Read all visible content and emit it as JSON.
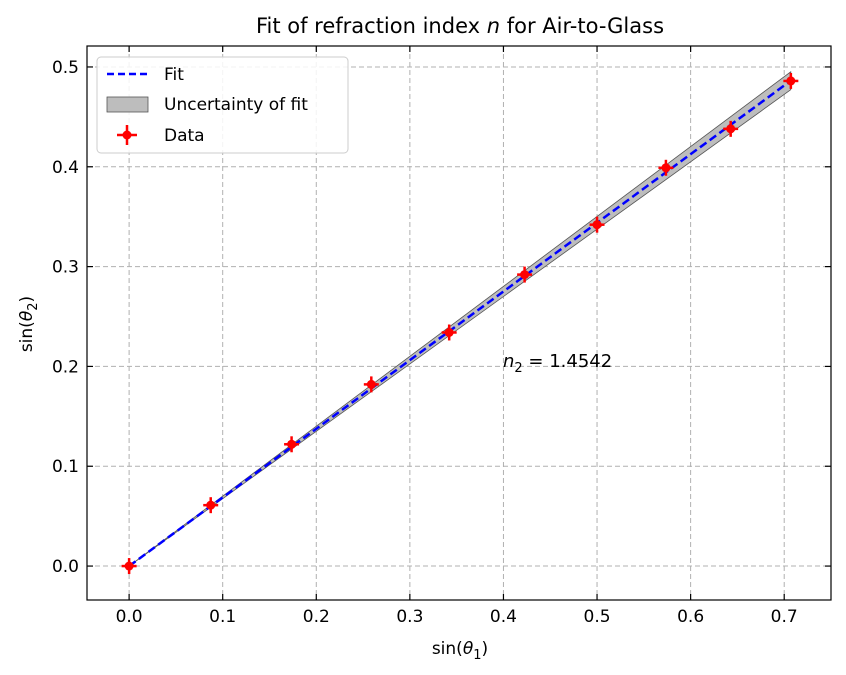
{
  "chart_data": {
    "type": "scatter",
    "title_pre": "Fit of refraction index ",
    "title_var": "n",
    "title_post": " for Air-to-Glass",
    "xlabel_fn": "sin(",
    "xlabel_var": "θ",
    "xlabel_sub": "1",
    "xlabel_close": ")",
    "ylabel_fn": "sin(",
    "ylabel_var": "θ",
    "ylabel_sub": "2",
    "ylabel_close": ")",
    "xlim": [
      -0.045,
      0.75
    ],
    "ylim": [
      -0.034,
      0.521
    ],
    "xticks": [
      0.0,
      0.1,
      0.2,
      0.3,
      0.4,
      0.5,
      0.6,
      0.7
    ],
    "xtick_labels": [
      "0.0",
      "0.1",
      "0.2",
      "0.3",
      "0.4",
      "0.5",
      "0.6",
      "0.7"
    ],
    "yticks": [
      0.0,
      0.1,
      0.2,
      0.3,
      0.4,
      0.5
    ],
    "ytick_labels": [
      "0.0",
      "0.1",
      "0.2",
      "0.3",
      "0.4",
      "0.5"
    ],
    "grid": true,
    "legend_position": "top-left",
    "legend": {
      "fit": "Fit",
      "band": "Uncertainty of fit",
      "data": "Data"
    },
    "annotation": {
      "var": "n",
      "sub": "2",
      "rest": " = 1.4542",
      "x": 0.4,
      "y": 0.2
    },
    "fit": {
      "slope": 0.6877,
      "x": [
        0.0,
        0.707
      ],
      "band_halfwidth_at_end": 0.009
    },
    "series": [
      {
        "name": "Data",
        "x": [
          0.0,
          0.0872,
          0.1736,
          0.2588,
          0.342,
          0.4226,
          0.5,
          0.5736,
          0.6428,
          0.7071
        ],
        "y": [
          0.0,
          0.061,
          0.122,
          0.182,
          0.234,
          0.292,
          0.342,
          0.399,
          0.438,
          0.486
        ],
        "xerr": 0.008,
        "yerr": 0.008
      }
    ],
    "colors": {
      "data": "#ff0000",
      "fit": "#0000ff",
      "band_fill": "#bdbdbd",
      "band_edge": "#555555",
      "grid": "#b0b0b0"
    }
  }
}
